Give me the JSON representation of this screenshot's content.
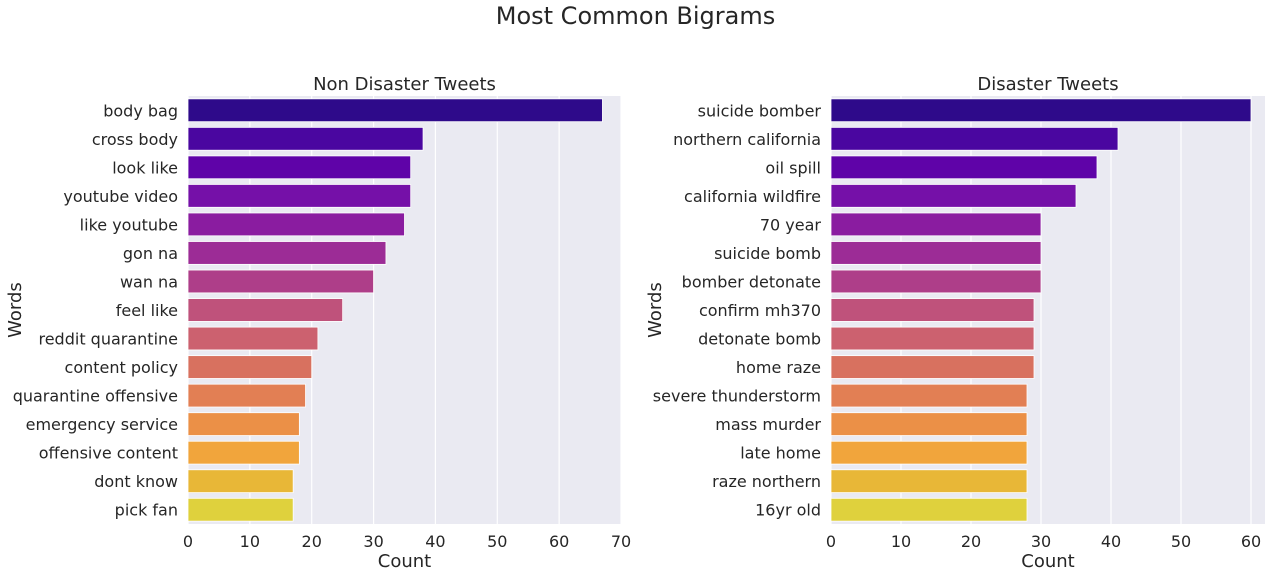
{
  "suptitle": "Most Common Bigrams",
  "chart_data": [
    {
      "type": "bar",
      "orientation": "horizontal",
      "title": "Non Disaster Tweets",
      "xlabel": "Count",
      "ylabel": "Words",
      "xlim": [
        0,
        70
      ],
      "xticks": [
        0,
        10,
        20,
        30,
        40,
        50,
        60,
        70
      ],
      "grid": true,
      "categories": [
        "body bag",
        "cross body",
        "look like",
        "youtube video",
        "like youtube",
        "gon na",
        "wan na",
        "feel like",
        "reddit quarantine",
        "content policy",
        "quarantine offensive",
        "emergency service",
        "offensive content",
        "dont know",
        "pick fan"
      ],
      "values": [
        67,
        38,
        36,
        36,
        35,
        32,
        30,
        25,
        21,
        20,
        19,
        18,
        18,
        17,
        17
      ]
    },
    {
      "type": "bar",
      "orientation": "horizontal",
      "title": "Disaster Tweets",
      "xlabel": "Count",
      "ylabel": "Words",
      "xlim": [
        0,
        62
      ],
      "xticks": [
        0,
        10,
        20,
        30,
        40,
        50,
        60
      ],
      "grid": true,
      "categories": [
        "suicide bomber",
        "northern california",
        "oil spill",
        "california wildfire",
        "70 year",
        "suicide bomb",
        "bomber detonate",
        "confirm mh370",
        "detonate bomb",
        "home raze",
        "severe thunderstorm",
        "mass murder",
        "late home",
        "raze northern",
        "16yr old"
      ],
      "values": [
        60,
        41,
        38,
        35,
        30,
        30,
        30,
        29,
        29,
        29,
        28,
        28,
        28,
        28,
        28
      ]
    }
  ],
  "palette": [
    "#2e0a8a",
    "#4a06a0",
    "#5f03a8",
    "#7510a8",
    "#8a1ca0",
    "#9c2c96",
    "#ae3e89",
    "#bf527b",
    "#cc616f",
    "#d8715f",
    "#e27f54",
    "#eb9047",
    "#f1a53c",
    "#e8b737",
    "#dfd13d"
  ],
  "plot_background": "#eaeaf2",
  "grid_color": "#ffffff"
}
